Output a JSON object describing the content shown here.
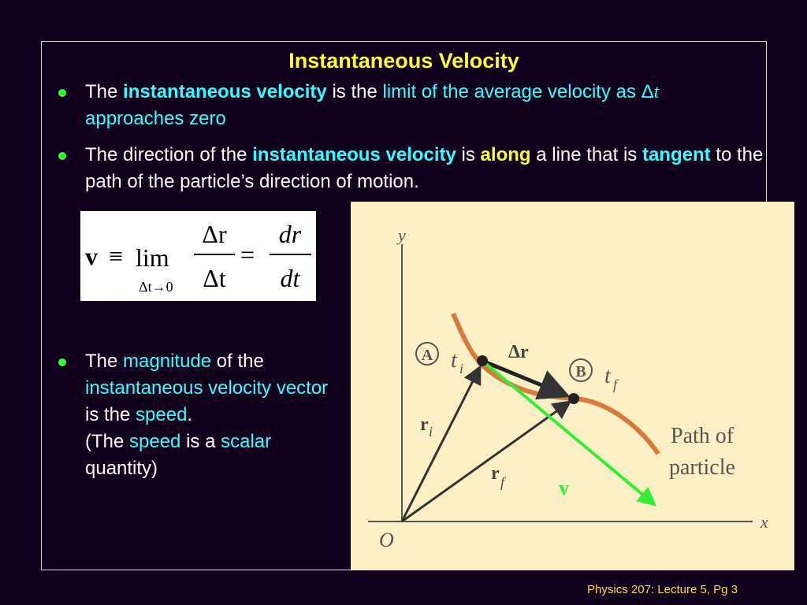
{
  "title": "Instantaneous Velocity",
  "bullets": [
    [
      "The ",
      "instantaneous velocity",
      " is the ",
      "limit of the average velocity as ",
      "Δ",
      "t",
      " approaches zero"
    ],
    [
      "The direction of the ",
      "instantaneous velocity",
      " is ",
      "along",
      " a line that is ",
      "tangent",
      " to the path of the particle’s direction of motion."
    ],
    [
      "The ",
      "magnitude",
      " of the ",
      "instantaneous velocity vector",
      " is the ",
      "speed",
      ".",
      "(The ",
      "speed",
      " is a ",
      "scalar",
      " quantity)"
    ]
  ],
  "equation": {
    "lhs": "v",
    "equiv": "≡",
    "lim": "lim",
    "limit_sub": "Δt→0",
    "num1": "Δr",
    "den1": "Δt",
    "eq": "=",
    "num2": "dr",
    "den2": "dt"
  },
  "figure": {
    "y_axis": "y",
    "x_axis": "x",
    "origin": "O",
    "point_a": "A",
    "point_b": "B",
    "t": "t",
    "sub_i": "i",
    "sub_f": "f",
    "delta_r": "Δr",
    "r": "r",
    "path_label": [
      "Path of",
      "particle"
    ],
    "velocity": "v"
  },
  "footer": "Physics 207: Lecture 5, Pg 3"
}
